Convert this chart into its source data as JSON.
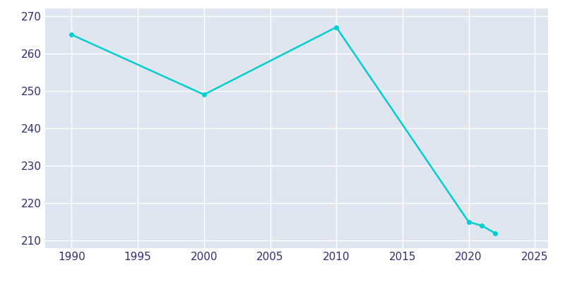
{
  "years": [
    1990,
    2000,
    2010,
    2020,
    2021,
    2022
  ],
  "population": [
    265,
    249,
    267,
    215,
    214,
    212
  ],
  "line_color": "#00CED1",
  "marker": "o",
  "marker_size": 4,
  "line_width": 1.8,
  "plot_bg_color": "#E0E6F0",
  "fig_bg_color": "#ffffff",
  "grid_color": "#ffffff",
  "xlim": [
    1988,
    2026
  ],
  "ylim": [
    208,
    272
  ],
  "xticks": [
    1990,
    1995,
    2000,
    2005,
    2010,
    2015,
    2020,
    2025
  ],
  "yticks": [
    210,
    220,
    230,
    240,
    250,
    260,
    270
  ],
  "tick_label_color": "#2d3070",
  "tick_fontsize": 11
}
